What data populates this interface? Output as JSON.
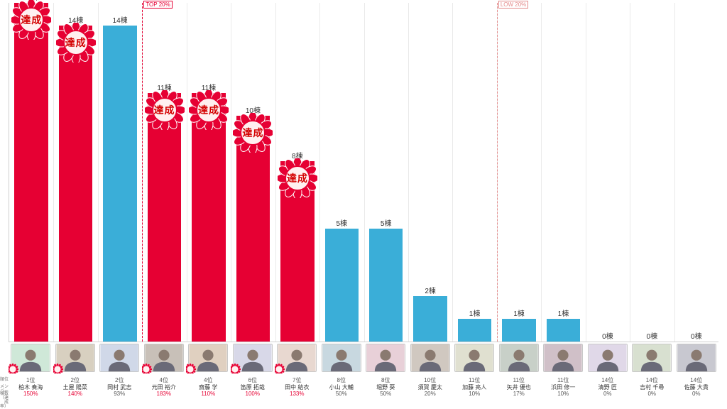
{
  "chart": {
    "type": "bar",
    "y_max": 15,
    "y_min": 0,
    "value_suffix": "棟",
    "background_color": "#ffffff",
    "gridline_color": "#eaeaea",
    "bar_width_pct": 76,
    "markers": [
      {
        "label": "TOP 20%",
        "after_index": 3,
        "color": "#e60033"
      },
      {
        "label": "LOW 20%",
        "after_index": 11,
        "color": "#e38a8a"
      }
    ],
    "badge": {
      "text": "達成",
      "text_color": "#d40000",
      "petal_color": "#e60033",
      "center_color": "#fff0f0",
      "stroke_color": "#ffffff"
    },
    "achieved_color": "#e60033",
    "normal_color": "#3aaed8",
    "pct_achieved_color": "#e60033",
    "pct_normal_color": "#555555",
    "members": [
      {
        "rank": "1位",
        "name": "柏木 奏海",
        "value": 15,
        "pct": "150%",
        "achieved": true
      },
      {
        "rank": "2位",
        "name": "土屋 陽菜",
        "value": 14,
        "pct": "140%",
        "achieved": true
      },
      {
        "rank": "2位",
        "name": "岡村 武志",
        "value": 14,
        "pct": "93%",
        "achieved": false
      },
      {
        "rank": "4位",
        "name": "元田 裕介",
        "value": 11,
        "pct": "183%",
        "achieved": true
      },
      {
        "rank": "4位",
        "name": "齋藤 学",
        "value": 11,
        "pct": "110%",
        "achieved": true
      },
      {
        "rank": "6位",
        "name": "笛原 拓哉",
        "value": 10,
        "pct": "100%",
        "achieved": true
      },
      {
        "rank": "7位",
        "name": "田中 結衣",
        "value": 8,
        "pct": "133%",
        "achieved": true
      },
      {
        "rank": "8位",
        "name": "小山 大輔",
        "value": 5,
        "pct": "50%",
        "achieved": false
      },
      {
        "rank": "8位",
        "name": "堀野 葵",
        "value": 5,
        "pct": "50%",
        "achieved": false
      },
      {
        "rank": "10位",
        "name": "須賀 慶太",
        "value": 2,
        "pct": "20%",
        "achieved": false
      },
      {
        "rank": "11位",
        "name": "加藤 亮人",
        "value": 1,
        "pct": "10%",
        "achieved": false
      },
      {
        "rank": "11位",
        "name": "矢井 優也",
        "value": 1,
        "pct": "17%",
        "achieved": false
      },
      {
        "rank": "11位",
        "name": "浜田 修一",
        "value": 1,
        "pct": "10%",
        "achieved": false
      },
      {
        "rank": "14位",
        "name": "清野 匠",
        "value": 0,
        "pct": "0%",
        "achieved": false
      },
      {
        "rank": "14位",
        "name": "吉村 千尋",
        "value": 0,
        "pct": "0%",
        "achieved": false
      },
      {
        "rank": "14位",
        "name": "佐藤 大貴",
        "value": 0,
        "pct": "0%",
        "achieved": false
      }
    ],
    "row_headers": {
      "rank": "順位",
      "member": "メンバー",
      "pct": "棟数（達成率）"
    }
  }
}
